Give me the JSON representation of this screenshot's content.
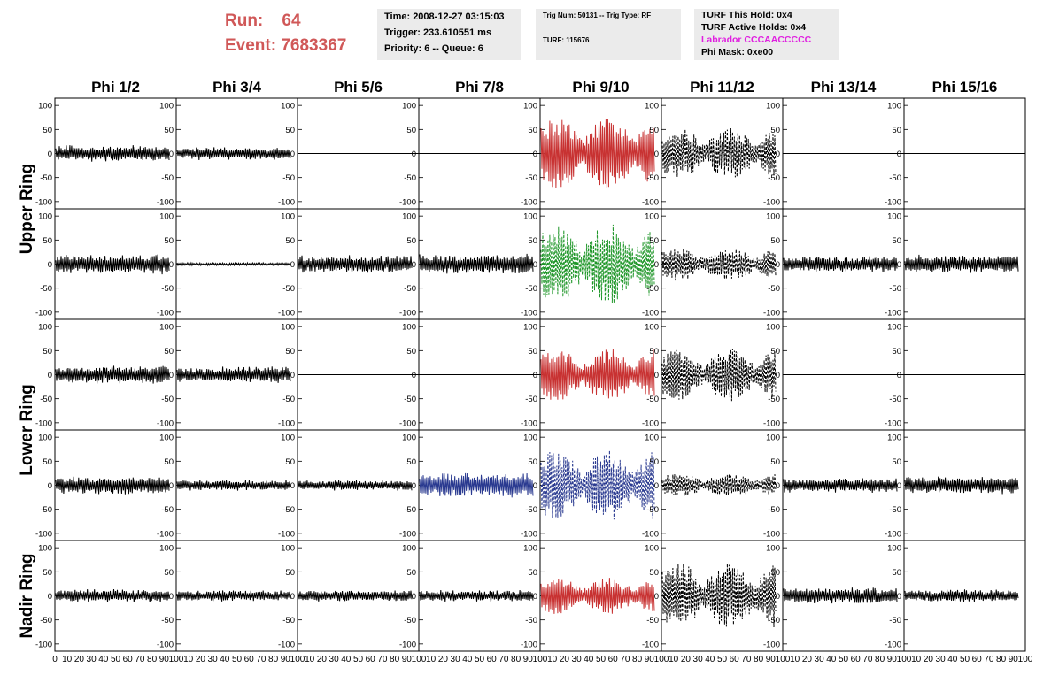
{
  "header": {
    "run_label": "Run:",
    "run_value": "64",
    "event_label": "Event:",
    "event_value": "7683367",
    "time": "Time: 2008-12-27 03:15:03",
    "trigger": "Trigger: 233.610551 ms",
    "priority": "Priority: 6 -- Queue: 6",
    "trig_num": "Trig Num: 50131 -- Trig Type: RF",
    "turf": "TURF: 115676",
    "turf_this_hold": "TURF This Hold: 0x4",
    "turf_active_holds": "TURF Active Holds: 0x4",
    "labrador": "Labrador CCCAACCCCC",
    "phi_mask": "Phi Mask: 0xe00"
  },
  "colors": {
    "run_text": "#d05858",
    "labrador_text": "#e020e0",
    "red": "#c83232",
    "green": "#1e9628",
    "blue": "#2a3a90",
    "black": "#000000"
  },
  "chart_data": {
    "type": "line",
    "columns": [
      "Phi 1/2",
      "Phi 3/4",
      "Phi 5/6",
      "Phi 7/8",
      "Phi 9/10",
      "Phi 11/12",
      "Phi 13/14",
      "Phi 15/16"
    ],
    "row_groups": [
      {
        "label": "Upper Ring",
        "rows": [
          0,
          1
        ]
      },
      {
        "label": "Lower Ring",
        "rows": [
          2,
          3
        ]
      },
      {
        "label": "Nadir Ring",
        "rows": [
          4
        ]
      }
    ],
    "xlim": [
      0,
      100
    ],
    "ylim": [
      -115,
      115
    ],
    "y_ticks": [
      100,
      50,
      0,
      -50,
      -100
    ],
    "y_tick_labels": [
      "100",
      "50",
      "0",
      "-50",
      "-100"
    ],
    "x_tick_labels": [
      "0",
      "10",
      "20",
      "30",
      "40",
      "50",
      "60",
      "70",
      "80",
      "90",
      "100"
    ],
    "x_tick_labels_last": [
      "10",
      "20",
      "30",
      "40",
      "50",
      "60",
      "70",
      "80",
      "90",
      "100"
    ],
    "grid": false,
    "panels": [
      [
        {
          "color": "black",
          "style": "solid",
          "amplitude": 18,
          "envelope": "flat"
        },
        {
          "color": "black",
          "style": "solid",
          "amplitude": 14,
          "envelope": "flat"
        },
        {
          "color": "black",
          "style": "flat",
          "amplitude": 0,
          "envelope": "flat"
        },
        {
          "color": "black",
          "style": "flat",
          "amplitude": 0,
          "envelope": "flat"
        },
        {
          "color": "red",
          "style": "solid",
          "amplitude": 75,
          "envelope": "pulse"
        },
        {
          "color": "black",
          "style": "dashed",
          "amplitude": 55,
          "envelope": "pulse"
        },
        {
          "color": "black",
          "style": "flat",
          "amplitude": 0,
          "envelope": "flat"
        },
        {
          "color": "black",
          "style": "flat",
          "amplitude": 0,
          "envelope": "flat"
        }
      ],
      [
        {
          "color": "black",
          "style": "solid",
          "amplitude": 22,
          "envelope": "flat"
        },
        {
          "color": "black",
          "style": "solid",
          "amplitude": 3,
          "envelope": "flat"
        },
        {
          "color": "black",
          "style": "solid",
          "amplitude": 20,
          "envelope": "flat"
        },
        {
          "color": "black",
          "style": "solid",
          "amplitude": 22,
          "envelope": "flat"
        },
        {
          "color": "green",
          "style": "dashed",
          "amplitude": 85,
          "envelope": "pulse"
        },
        {
          "color": "black",
          "style": "dashed",
          "amplitude": 35,
          "envelope": "pulse"
        },
        {
          "color": "black",
          "style": "solid",
          "amplitude": 18,
          "envelope": "flat"
        },
        {
          "color": "black",
          "style": "solid",
          "amplitude": 20,
          "envelope": "flat"
        }
      ],
      [
        {
          "color": "black",
          "style": "solid",
          "amplitude": 20,
          "envelope": "flat"
        },
        {
          "color": "black",
          "style": "solid",
          "amplitude": 18,
          "envelope": "flat"
        },
        {
          "color": "black",
          "style": "flat",
          "amplitude": 0,
          "envelope": "flat"
        },
        {
          "color": "black",
          "style": "flat",
          "amplitude": 0,
          "envelope": "flat"
        },
        {
          "color": "red",
          "style": "solid",
          "amplitude": 55,
          "envelope": "pulse"
        },
        {
          "color": "black",
          "style": "dashed",
          "amplitude": 55,
          "envelope": "pulse"
        },
        {
          "color": "black",
          "style": "flat",
          "amplitude": 0,
          "envelope": "flat"
        },
        {
          "color": "black",
          "style": "flat",
          "amplitude": 0,
          "envelope": "flat"
        }
      ],
      [
        {
          "color": "black",
          "style": "solid",
          "amplitude": 20,
          "envelope": "flat"
        },
        {
          "color": "black",
          "style": "solid",
          "amplitude": 12,
          "envelope": "flat"
        },
        {
          "color": "black",
          "style": "solid",
          "amplitude": 12,
          "envelope": "flat"
        },
        {
          "color": "blue",
          "style": "solid",
          "amplitude": 28,
          "envelope": "flat"
        },
        {
          "color": "blue",
          "style": "dashed",
          "amplitude": 75,
          "envelope": "pulse"
        },
        {
          "color": "black",
          "style": "dashed",
          "amplitude": 25,
          "envelope": "pulse"
        },
        {
          "color": "black",
          "style": "solid",
          "amplitude": 16,
          "envelope": "flat"
        },
        {
          "color": "black",
          "style": "solid",
          "amplitude": 20,
          "envelope": "flat"
        }
      ],
      [
        {
          "color": "black",
          "style": "solid",
          "amplitude": 14,
          "envelope": "flat"
        },
        {
          "color": "black",
          "style": "solid",
          "amplitude": 12,
          "envelope": "flat"
        },
        {
          "color": "black",
          "style": "solid",
          "amplitude": 13,
          "envelope": "flat"
        },
        {
          "color": "black",
          "style": "solid",
          "amplitude": 13,
          "envelope": "flat"
        },
        {
          "color": "red",
          "style": "solid",
          "amplitude": 38,
          "envelope": "pulse"
        },
        {
          "color": "black",
          "style": "dashed",
          "amplitude": 70,
          "envelope": "pulse"
        },
        {
          "color": "black",
          "style": "solid",
          "amplitude": 18,
          "envelope": "flat"
        },
        {
          "color": "black",
          "style": "solid",
          "amplitude": 14,
          "envelope": "flat"
        }
      ]
    ]
  }
}
